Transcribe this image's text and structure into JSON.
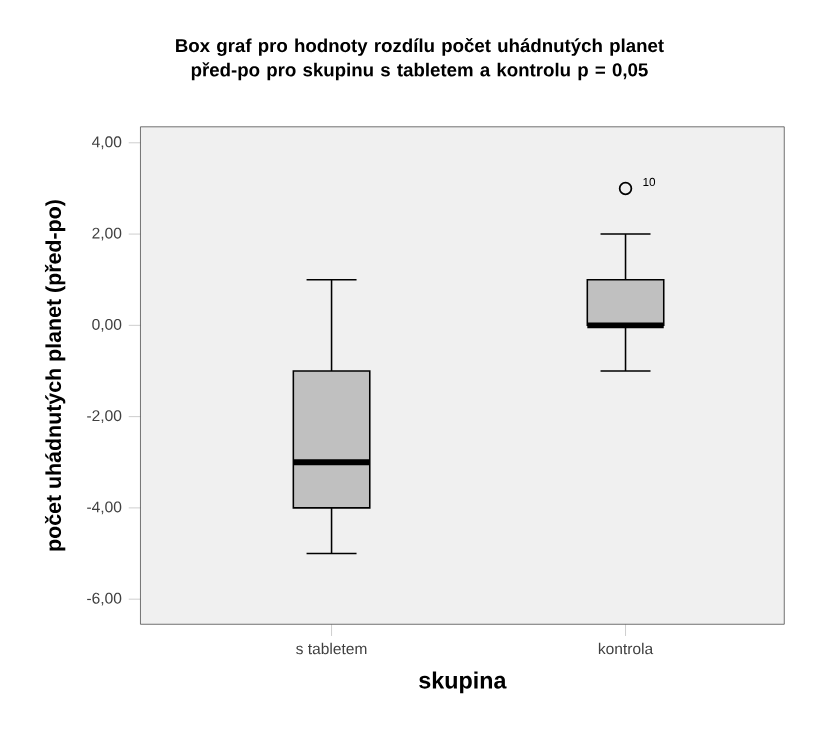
{
  "chart_data": {
    "type": "box",
    "title": "Box graf pro hodnoty rozdílu počet uhádnutých planet před-po pro skupinu s tabletem a kontrolu p = 0,05",
    "xlabel": "skupina",
    "ylabel": "počet uhádnutých planet (před-po)",
    "categories": [
      "s tabletem",
      "kontrola"
    ],
    "boxes": [
      {
        "low": -5,
        "q1": -4,
        "median": -3,
        "q3": -1,
        "high": 1
      },
      {
        "low": -1,
        "q1": 0,
        "median": 0,
        "q3": 1,
        "high": 2,
        "outliers": [
          3
        ]
      }
    ],
    "color": "#c0c0c0",
    "ylim": [
      -6.55,
      4.35
    ],
    "yticks": [
      {
        "value": -6,
        "label": "-6,00"
      },
      {
        "value": -4,
        "label": "-4,00"
      },
      {
        "value": -2,
        "label": "-2,00"
      },
      {
        "value": 0,
        "label": "0,00"
      },
      {
        "value": 2,
        "label": "2,00"
      },
      {
        "value": 4,
        "label": "4,00"
      }
    ],
    "annotations": [
      "10"
    ]
  }
}
